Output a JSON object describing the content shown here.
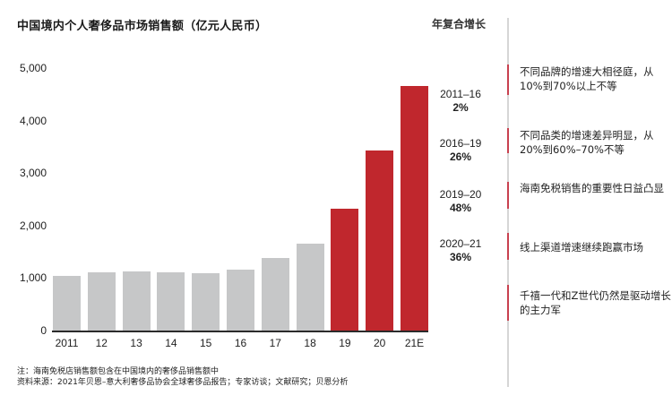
{
  "title": "中国境内个人奢侈品市场销售额（亿元人民币）",
  "cagr_header": "年复合增长",
  "colors": {
    "historic_bar": "#c6c7c8",
    "highlight_bar": "#c0272d",
    "axis": "#2b2b2b",
    "divider": "#d6d6d6",
    "divider_accent": "#c8414f"
  },
  "y_ticks": [
    "5,000",
    "4,000",
    "3,000",
    "2,000",
    "1,000",
    "0"
  ],
  "x_ticks": [
    "2011",
    "12",
    "13",
    "14",
    "15",
    "16",
    "17",
    "18",
    "19",
    "20",
    "21E"
  ],
  "cagr": [
    {
      "period": "2011–16",
      "rate": "2%"
    },
    {
      "period": "2016–19",
      "rate": "26%"
    },
    {
      "period": "2019–20",
      "rate": "48%"
    },
    {
      "period": "2020–21",
      "rate": "36%"
    }
  ],
  "notes": [
    "不同品牌的增速大相径庭，从10%到70%以上不等",
    "不同品类的增速差异明显，从20%到60%–70%不等",
    "海南免税销售的重要性日益凸显",
    "线上渠道增速继续跑赢市场",
    "千禧一代和Z世代仍然是驱动增长的主力军"
  ],
  "footer": {
    "note": "注：海南免税店销售额包含在中国境内的奢侈品销售额中",
    "source": "资料来源：2021年贝恩–意大利奢侈品协会全球奢侈品报告；专家访谈；文献研究；贝恩分析"
  },
  "chart_data": {
    "type": "bar",
    "title": "中国境内个人奢侈品市场销售额（亿元人民币）",
    "xlabel": "",
    "ylabel": "亿元人民币",
    "categories": [
      "2011",
      "12",
      "13",
      "14",
      "15",
      "16",
      "17",
      "18",
      "19",
      "20",
      "21E"
    ],
    "values": [
      1050,
      1130,
      1150,
      1130,
      1110,
      1170,
      1400,
      1680,
      2330,
      3440,
      4680
    ],
    "highlighted": [
      false,
      false,
      false,
      false,
      false,
      false,
      false,
      false,
      true,
      true,
      true
    ],
    "ylim": [
      0,
      5000
    ],
    "yticks": [
      0,
      1000,
      2000,
      3000,
      4000,
      5000
    ],
    "grid": false,
    "legend": "none",
    "annotations": [
      {
        "label": "2011–16",
        "cagr": "2%"
      },
      {
        "label": "2016–19",
        "cagr": "26%"
      },
      {
        "label": "2019–20",
        "cagr": "48%"
      },
      {
        "label": "2020–21",
        "cagr": "36%"
      }
    ]
  }
}
